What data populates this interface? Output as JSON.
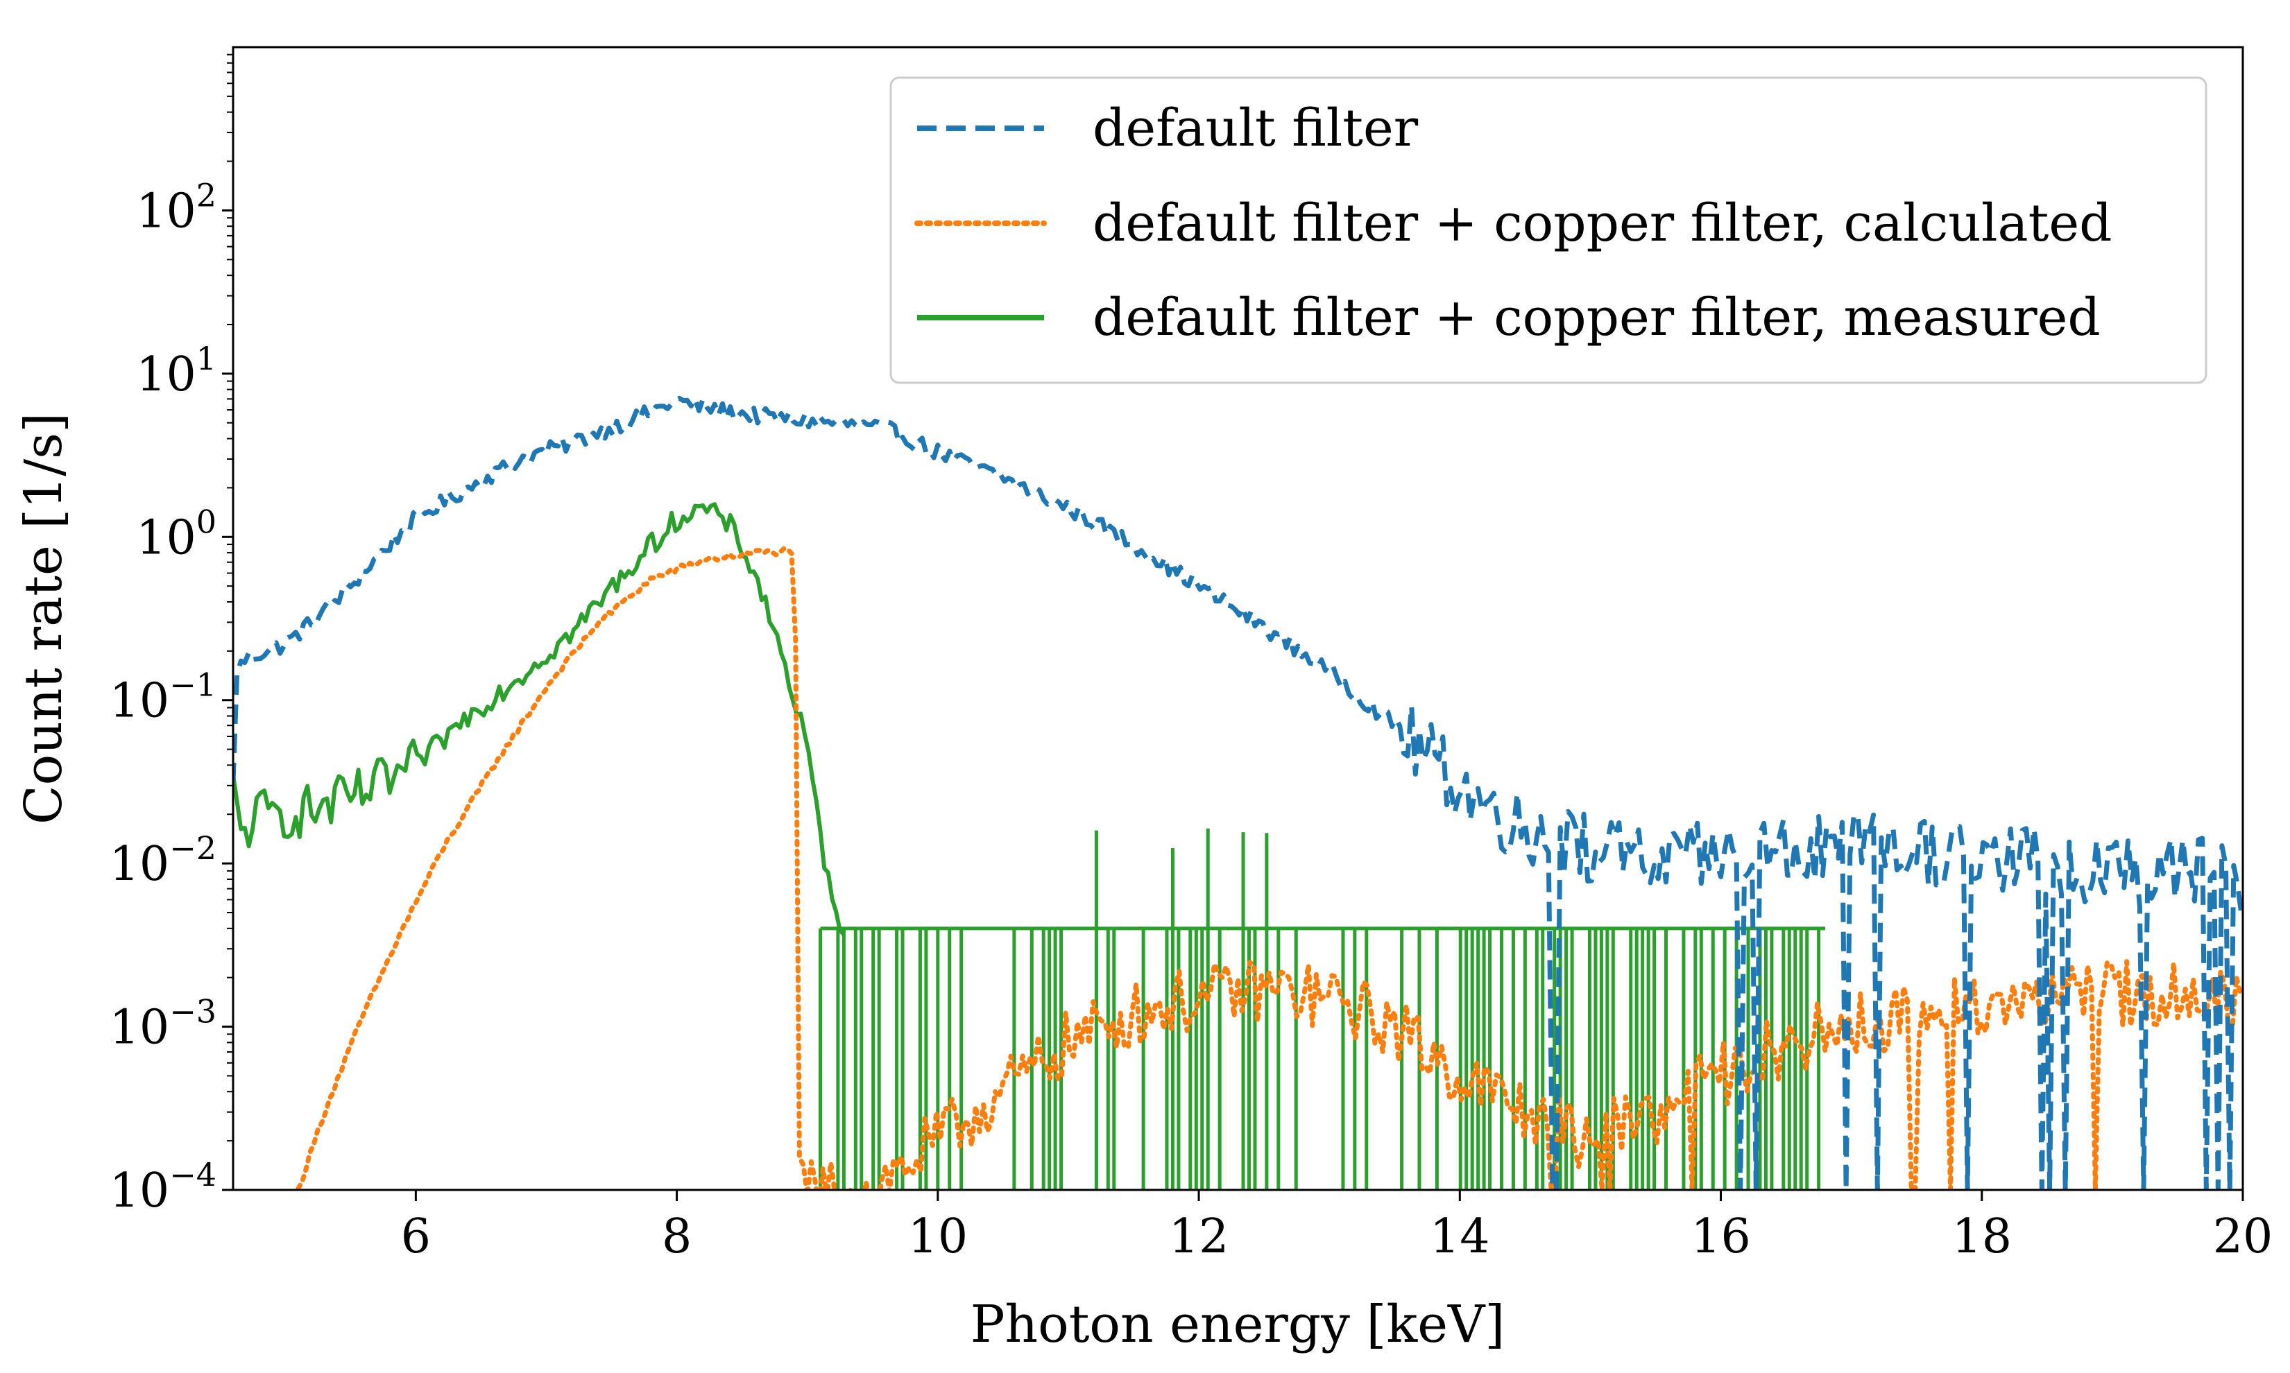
{
  "chart_data": {
    "type": "line",
    "title": "",
    "xlabel": "Photon energy [keV]",
    "ylabel": "Count rate [1/s]",
    "xlim": [
      4.6,
      20
    ],
    "ylim": [
      0.0001,
      1000
    ],
    "yscale": "log",
    "x_ticks": [
      6,
      8,
      10,
      12,
      14,
      16,
      18,
      20
    ],
    "x_tick_labels": [
      "6",
      "8",
      "10",
      "12",
      "14",
      "16",
      "18",
      "20"
    ],
    "y_ticks": [
      {
        "base": "10",
        "exp": "2",
        "value": 100
      },
      {
        "base": "10",
        "exp": "1",
        "value": 10
      },
      {
        "base": "10",
        "exp": "0",
        "value": 1
      },
      {
        "base": "10",
        "exp": "−1",
        "value": 0.1
      },
      {
        "base": "10",
        "exp": "−2",
        "value": 0.01
      },
      {
        "base": "10",
        "exp": "−3",
        "value": 0.001
      },
      {
        "base": "10",
        "exp": "−4",
        "value": 0.0001
      }
    ],
    "legend_position": "top-right",
    "series": [
      {
        "name": "default filter",
        "color": "#1f77b4",
        "style": "dashed",
        "x": [
          4.6,
          4.62,
          4.7,
          5.0,
          5.3,
          5.5,
          5.8,
          6.0,
          6.4,
          6.8,
          7.2,
          7.6,
          8.0,
          8.4,
          8.8,
          9.2,
          9.6,
          10.0,
          10.5,
          11.0,
          11.5,
          12.0,
          12.5,
          13.0,
          13.5,
          14.0,
          14.3,
          14.6,
          15.0,
          15.5,
          16.0,
          16.5,
          17.0,
          17.5,
          18.0,
          18.5,
          19.0,
          19.5,
          20.0
        ],
        "y": [
          0.03,
          0.15,
          0.18,
          0.22,
          0.35,
          0.5,
          0.9,
          1.3,
          2.0,
          3.0,
          3.8,
          5.0,
          6.8,
          5.8,
          5.3,
          5.0,
          4.6,
          3.3,
          2.3,
          1.5,
          0.9,
          0.5,
          0.28,
          0.15,
          0.07,
          0.03,
          0.02,
          0.015,
          0.012,
          0.01,
          0.011,
          0.012,
          0.012,
          0.012,
          0.011,
          0.01,
          0.009,
          0.009,
          0.008
        ]
      },
      {
        "name": "default filter + copper filter, calculated",
        "color": "#ff7f0e",
        "style": "dotted",
        "x": [
          5.1,
          5.3,
          5.6,
          5.9,
          6.2,
          6.6,
          7.0,
          7.4,
          7.8,
          8.2,
          8.6,
          8.9,
          8.92,
          8.94,
          9.5,
          10.0,
          10.5,
          11.0,
          11.5,
          12.0,
          12.5,
          13.0,
          13.5,
          14.0,
          14.5,
          15.0,
          15.5,
          16.0,
          16.5,
          17.0,
          17.5,
          18.0,
          18.5,
          19.0,
          19.5,
          20.0
        ],
        "y": [
          0.0001,
          0.0003,
          0.0012,
          0.004,
          0.012,
          0.04,
          0.12,
          0.3,
          0.55,
          0.72,
          0.8,
          0.82,
          0.03,
          0.0001,
          0.0001,
          0.0002,
          0.0004,
          0.0008,
          0.0012,
          0.0015,
          0.0017,
          0.0015,
          0.001,
          0.0005,
          0.0003,
          0.0002,
          0.0003,
          0.0005,
          0.0008,
          0.001,
          0.0012,
          0.0014,
          0.0015,
          0.0016,
          0.0016,
          0.0015
        ]
      },
      {
        "name": "default filter + copper filter, measured",
        "color": "#2ca02c",
        "style": "solid",
        "x": [
          4.6,
          4.65,
          4.8,
          5.0,
          5.3,
          5.6,
          6.0,
          6.4,
          6.8,
          7.2,
          7.6,
          8.0,
          8.2,
          8.4,
          8.6,
          8.8,
          9.0,
          9.1,
          9.2,
          9.3
        ],
        "y": [
          0.028,
          0.015,
          0.02,
          0.02,
          0.022,
          0.027,
          0.04,
          0.08,
          0.14,
          0.26,
          0.6,
          1.3,
          1.5,
          1.2,
          0.6,
          0.2,
          0.05,
          0.015,
          0.005,
          0.004
        ],
        "noise_floor_level": 0.004,
        "noise_floor_range": [
          9.1,
          16.8
        ]
      }
    ]
  }
}
